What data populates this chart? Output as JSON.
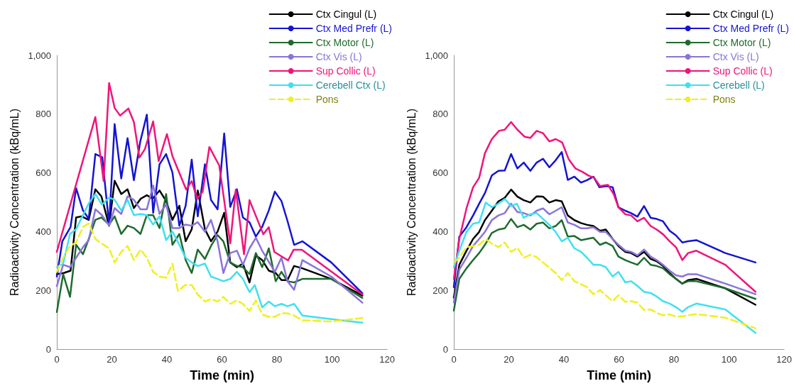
{
  "chart_data": [
    {
      "type": "line",
      "xlabel": "Time (min)",
      "ylabel": "Radioactivity Concentration (kBq/mL)",
      "xlim": [
        0,
        120
      ],
      "xticks": [
        0,
        20,
        40,
        60,
        80,
        100,
        120
      ],
      "ylim": [
        0,
        1000
      ],
      "yticks": [
        0,
        200,
        400,
        600,
        800,
        {
          "value": 1000,
          "label": "1,000"
        }
      ],
      "legend": "top right",
      "series": [
        {
          "name": "Ctx Cingul (L)",
          "color": "#000000",
          "x": [
            0,
            2.5,
            5,
            7,
            9,
            11.6,
            14,
            16.2,
            19,
            21,
            23.4,
            25.7,
            28,
            30.5,
            32.7,
            34.8,
            37.3,
            39.7,
            42,
            44.5,
            46.8,
            49,
            51.2,
            53.8,
            56,
            58.4,
            60.8,
            63,
            65.4,
            67.6,
            70,
            72.3,
            74.6,
            77,
            79.5,
            81.6,
            83.8,
            86.2,
            89.2,
            99.7,
            111
          ],
          "values": [
            255,
            259,
            267,
            448,
            452,
            440,
            544,
            520,
            420,
            573,
            528,
            544,
            480,
            512,
            524,
            512,
            540,
            504,
            440,
            488,
            367,
            408,
            540,
            408,
            367,
            400,
            464,
            295,
            279,
            291,
            227,
            319,
            303,
            267,
            259,
            235,
            235,
            283,
            275,
            239,
            182
          ]
        },
        {
          "name": "Ctx Med Prefr (L)",
          "color": "#1414d2",
          "x": [
            0,
            2,
            5,
            7,
            9.5,
            11.6,
            14,
            16.5,
            19,
            21,
            23.4,
            25.7,
            28,
            30.3,
            32.7,
            35,
            37.3,
            39.7,
            42,
            44.5,
            46.8,
            49,
            51.2,
            53.8,
            56,
            58.4,
            60.8,
            63,
            65.4,
            67.6,
            70,
            72.3,
            74.6,
            77,
            79.2,
            81.6,
            83.8,
            86.2,
            89.2,
            99.7,
            111
          ],
          "values": [
            247,
            367,
            416,
            548,
            472,
            444,
            664,
            653,
            424,
            766,
            581,
            718,
            575,
            706,
            798,
            464,
            629,
            664,
            601,
            420,
            488,
            645,
            452,
            629,
            508,
            476,
            734,
            484,
            544,
            448,
            432,
            383,
            416,
            472,
            536,
            504,
            436,
            355,
            367,
            295,
            190
          ]
        },
        {
          "name": "Ctx Motor (L)",
          "color": "#1e6b2e",
          "x": [
            0,
            2.3,
            4.8,
            7,
            9.5,
            11.6,
            14,
            16.2,
            19,
            21,
            23.4,
            25.7,
            28,
            30.4,
            32.7,
            35,
            37.3,
            39.7,
            42,
            44.5,
            46.8,
            49,
            51.2,
            53.8,
            56,
            58.4,
            60.5,
            63,
            65.4,
            67.6,
            70,
            72.3,
            74.6,
            77,
            79.5,
            81.6,
            83.8,
            86.2,
            89.2,
            99.7,
            111
          ],
          "values": [
            126,
            255,
            178,
            355,
            323,
            375,
            440,
            448,
            424,
            452,
            392,
            420,
            412,
            392,
            456,
            456,
            412,
            528,
            355,
            392,
            303,
            259,
            339,
            307,
            351,
            388,
            367,
            295,
            283,
            279,
            255,
            327,
            279,
            343,
            231,
            263,
            231,
            227,
            239,
            239,
            174
          ]
        },
        {
          "name": "Ctx Vis (L)",
          "color": "#8a74d8",
          "x": [
            0,
            2.3,
            4.8,
            7,
            9.5,
            11.6,
            14,
            16.4,
            19,
            21,
            23.4,
            25.7,
            28,
            30.4,
            32.7,
            35,
            37.3,
            39.7,
            42,
            44.5,
            46.8,
            49,
            51.2,
            53.8,
            56,
            58.4,
            60.5,
            63,
            65.4,
            67.6,
            70,
            72.3,
            74.6,
            79.2,
            81.6,
            83.8,
            86.2,
            89.2,
            99.7,
            111
          ],
          "values": [
            214,
            287,
            279,
            311,
            347,
            371,
            476,
            456,
            420,
            480,
            460,
            520,
            508,
            476,
            476,
            557,
            460,
            492,
            412,
            412,
            424,
            420,
            432,
            400,
            440,
            367,
            259,
            327,
            335,
            287,
            343,
            379,
            335,
            263,
            311,
            231,
            202,
            303,
            247,
            158
          ]
        },
        {
          "name": "Sup Collic (L)",
          "color": "#f0147a",
          "x": [
            0,
            14,
            17,
            19,
            21,
            23,
            26,
            28,
            30,
            32,
            35,
            37,
            40,
            42,
            47,
            49,
            51,
            53,
            55.4,
            59,
            63,
            65,
            68,
            70,
            75,
            77,
            79,
            84,
            86,
            89,
            111
          ],
          "values": [
            331,
            790,
            572,
            906,
            821,
            795,
            819,
            773,
            652,
            681,
            775,
            640,
            732,
            657,
            543,
            572,
            512,
            536,
            688,
            625,
            360,
            543,
            323,
            507,
            391,
            415,
            331,
            302,
            338,
            338,
            186
          ]
        },
        {
          "name": "Cerebell Ctx (L)",
          "color": "#40e0f0",
          "x": [
            0,
            2.3,
            4.8,
            7,
            9.5,
            11.6,
            14,
            16.4,
            19,
            21,
            23.4,
            25.7,
            28,
            30.4,
            32.7,
            35,
            37.3,
            39.7,
            42,
            44.5,
            46.8,
            49,
            51.2,
            53.8,
            56,
            58.4,
            60.5,
            63,
            65.4,
            67.6,
            70,
            71.9,
            74.6,
            77,
            79.2,
            81.6,
            83.8,
            86.2,
            89.2,
            99.7,
            111
          ],
          "values": [
            279,
            291,
            392,
            408,
            456,
            496,
            528,
            492,
            516,
            508,
            472,
            508,
            456,
            460,
            456,
            424,
            452,
            371,
            400,
            355,
            311,
            295,
            283,
            291,
            247,
            239,
            231,
            239,
            263,
            239,
            194,
            218,
            142,
            162,
            146,
            154,
            146,
            154,
            114,
            102,
            90
          ]
        },
        {
          "name": "Pons",
          "color": "#f0f020",
          "line_style": "dashed",
          "x": [
            0,
            2.3,
            4.8,
            7,
            9.5,
            11.6,
            14,
            16.4,
            19,
            21,
            23.4,
            25.7,
            28,
            30.4,
            32.7,
            35,
            37.3,
            39.7,
            42,
            44,
            46.6,
            49,
            51.2,
            53.8,
            56,
            58.4,
            60.5,
            63,
            65.4,
            67.6,
            70,
            72.3,
            74.6,
            77,
            79.2,
            81.6,
            83.8,
            86.2,
            89.2,
            99.7,
            111
          ],
          "values": [
            263,
            311,
            351,
            363,
            416,
            428,
            375,
            359,
            343,
            295,
            331,
            351,
            303,
            339,
            311,
            263,
            247,
            243,
            291,
            198,
            218,
            218,
            186,
            162,
            170,
            162,
            178,
            154,
            166,
            154,
            130,
            166,
            118,
            110,
            110,
            122,
            122,
            114,
            98,
            94,
            106
          ]
        }
      ]
    },
    {
      "type": "line",
      "xlabel": "Time (min)",
      "ylabel": "Radioactivity Concentration (kBq/mL)",
      "xlim": [
        0,
        120
      ],
      "xticks": [
        0,
        20,
        40,
        60,
        80,
        100,
        120
      ],
      "ylim": [
        0,
        1000
      ],
      "yticks": [
        0,
        200,
        400,
        600,
        800,
        {
          "value": 1000,
          "label": "1,000"
        }
      ],
      "legend": "top right",
      "series": [
        {
          "name": "Ctx Cingul (L)",
          "color": "#000000",
          "x": [
            0,
            2,
            4.6,
            7,
            9.2,
            11.3,
            13.8,
            16.2,
            18.5,
            20.8,
            23.1,
            25.4,
            27.8,
            30.1,
            32.4,
            34.7,
            37,
            39.2,
            41.4,
            43.8,
            46.2,
            48.4,
            50.7,
            53.1,
            55.2,
            57.7,
            59.8,
            62.3,
            64.4,
            66.7,
            69.1,
            71.5,
            73.7,
            76,
            78.4,
            80.7,
            83,
            85.1,
            88.1,
            98.6,
            109.6
          ],
          "values": [
            175,
            287,
            335,
            375,
            399,
            439,
            471,
            503,
            515,
            543,
            519,
            507,
            499,
            520,
            519,
            499,
            507,
            503,
            455,
            439,
            429,
            423,
            419,
            403,
            407,
            375,
            351,
            331,
            327,
            315,
            331,
            307,
            299,
            283,
            259,
            239,
            223,
            235,
            239,
            207,
            151
          ]
        },
        {
          "name": "Ctx Med Prefr (L)",
          "color": "#1414d2",
          "x": [
            0,
            2,
            4.6,
            7,
            9.2,
            11.3,
            13.8,
            16.2,
            18.5,
            20.8,
            23.1,
            25.4,
            27.8,
            30.1,
            32.4,
            34.7,
            37,
            39.2,
            41.4,
            43.8,
            46.2,
            48.4,
            50.7,
            52.9,
            55.6,
            57.7,
            59.8,
            62.3,
            64.4,
            66.7,
            69.1,
            71.5,
            73.7,
            76,
            78.4,
            80.7,
            83,
            85.1,
            88.1,
            98.6,
            109.6
          ],
          "values": [
            211,
            383,
            415,
            455,
            495,
            531,
            591,
            607,
            608,
            664,
            615,
            635,
            607,
            635,
            648,
            619,
            643,
            671,
            576,
            587,
            567,
            575,
            587,
            551,
            555,
            551,
            483,
            471,
            463,
            451,
            487,
            447,
            443,
            435,
            403,
            387,
            363,
            367,
            371,
            327,
            295
          ]
        },
        {
          "name": "Ctx Motor (L)",
          "color": "#1e6b2e",
          "x": [
            0,
            2,
            4.6,
            7,
            9.2,
            11.3,
            13.8,
            16.2,
            18.5,
            20.8,
            23.1,
            25.4,
            27.8,
            30.1,
            32.4,
            34.7,
            37,
            39.2,
            41.4,
            43.8,
            46.2,
            48.4,
            50.7,
            53.1,
            55.2,
            57.7,
            59.8,
            62.3,
            64.4,
            66.7,
            69.1,
            71.5,
            73.7,
            76,
            78.4,
            80.7,
            83,
            85.1,
            88.1,
            98.6,
            109.6
          ],
          "values": [
            131,
            239,
            275,
            303,
            327,
            355,
            395,
            407,
            411,
            443,
            415,
            423,
            407,
            427,
            431,
            411,
            419,
            439,
            383,
            385,
            371,
            375,
            379,
            355,
            363,
            351,
            315,
            303,
            295,
            287,
            311,
            287,
            283,
            275,
            255,
            239,
            223,
            231,
            231,
            207,
            171
          ]
        },
        {
          "name": "Ctx Vis (L)",
          "color": "#8a74d8",
          "x": [
            0,
            2,
            4.6,
            7,
            9.2,
            11.3,
            13.8,
            16.2,
            18.5,
            20.8,
            23.1,
            25.4,
            27.8,
            30.1,
            32.4,
            34.7,
            37,
            39.2,
            41.4,
            43.8,
            46.2,
            48.4,
            50.7,
            53.1,
            55.2,
            57.7,
            59.8,
            62.3,
            64.4,
            66.7,
            69.1,
            71.5,
            73.7,
            76,
            78.4,
            80.7,
            83,
            85.1,
            88.1,
            98.6,
            109.6
          ],
          "values": [
            159,
            271,
            311,
            351,
            375,
            399,
            439,
            455,
            463,
            495,
            467,
            463,
            455,
            471,
            479,
            459,
            471,
            483,
            431,
            423,
            411,
            411,
            415,
            399,
            399,
            375,
            355,
            335,
            331,
            319,
            339,
            315,
            303,
            287,
            267,
            251,
            247,
            255,
            255,
            223,
            187
          ]
        },
        {
          "name": "Sup Collic (L)",
          "color": "#f0147a",
          "x": [
            0,
            2,
            4.6,
            7,
            9.2,
            11.3,
            13.8,
            16.4,
            18.5,
            20.8,
            23.1,
            25.7,
            27.8,
            30.1,
            32.4,
            34.7,
            37,
            39.4,
            41.7,
            44.2,
            46.8,
            48.9,
            51,
            53.1,
            56,
            58.1,
            59.8,
            62.3,
            64.4,
            66.7,
            69.1,
            71.5,
            73.7,
            76,
            78.4,
            80.7,
            83,
            85.1,
            88.1,
            98.6,
            109.6
          ],
          "values": [
            239,
            375,
            479,
            551,
            583,
            667,
            715,
            743,
            747,
            773,
            747,
            723,
            719,
            743,
            735,
            707,
            715,
            703,
            647,
            615,
            603,
            591,
            583,
            555,
            559,
            527,
            483,
            459,
            455,
            435,
            447,
            419,
            407,
            391,
            367,
            347,
            303,
            327,
            335,
            287,
            195
          ]
        },
        {
          "name": "Cerebell (L)",
          "color": "#40e0f0",
          "x": [
            0,
            2,
            4.6,
            7,
            9.2,
            11.6,
            13.8,
            16.2,
            18.5,
            20.8,
            22.9,
            25.4,
            27.8,
            30.1,
            32.4,
            34.7,
            37,
            39.2,
            41.4,
            43.8,
            46.2,
            48.4,
            50.7,
            53.1,
            55.2,
            57.7,
            59.8,
            62.3,
            64.4,
            66.7,
            69.1,
            71.5,
            73.7,
            76,
            78.4,
            80.7,
            83,
            85.1,
            88.1,
            98.6,
            109.6
          ],
          "values": [
            279,
            335,
            399,
            427,
            431,
            499,
            483,
            495,
            511,
            487,
            495,
            447,
            459,
            463,
            443,
            423,
            399,
            367,
            379,
            343,
            331,
            311,
            287,
            287,
            279,
            247,
            263,
            227,
            231,
            215,
            195,
            191,
            179,
            163,
            155,
            143,
            127,
            143,
            155,
            135,
            55
          ]
        },
        {
          "name": "Pons",
          "color": "#f0f020",
          "line_style": "dashed",
          "x": [
            0,
            2,
            4.6,
            7,
            9.2,
            11.6,
            13.8,
            16.2,
            18.5,
            20.8,
            23.1,
            25.4,
            27.8,
            30.1,
            32.4,
            34.7,
            37,
            39.2,
            41.4,
            43.8,
            46.2,
            48.4,
            50.7,
            53.1,
            55.2,
            57.7,
            59.8,
            62.3,
            64.4,
            66.7,
            69.1,
            71.5,
            73.7,
            76,
            78.4,
            80.7,
            83,
            85.1,
            88.1,
            98.6,
            109.6
          ],
          "values": [
            295,
            311,
            347,
            351,
            355,
            375,
            359,
            347,
            363,
            331,
            345,
            311,
            321,
            313,
            295,
            277,
            259,
            235,
            259,
            231,
            221,
            211,
            187,
            201,
            183,
            163,
            183,
            161,
            163,
            158,
            133,
            135,
            123,
            115,
            118,
            111,
            111,
            115,
            119,
            107,
            71
          ]
        }
      ]
    }
  ]
}
